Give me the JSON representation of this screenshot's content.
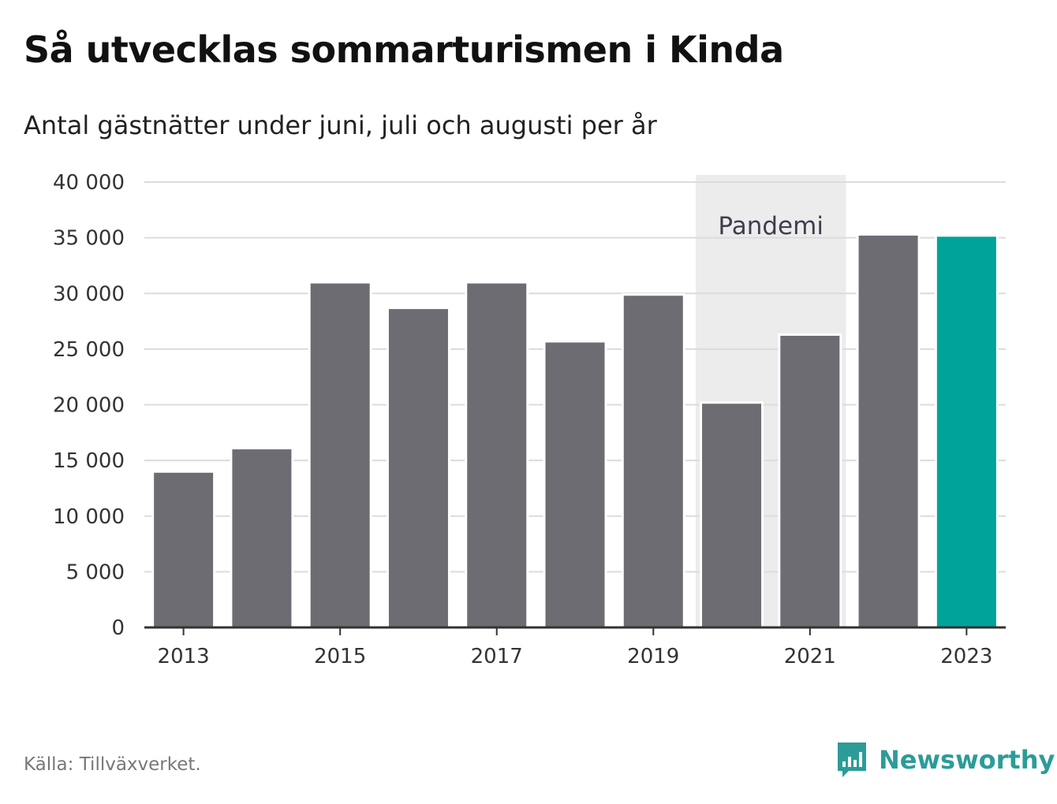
{
  "title": "Så utvecklas sommarturismen i Kinda",
  "subtitle": "Antal gästnätter under juni, juli och augusti per år",
  "source": "Källa: Tillväxverket.",
  "brand": {
    "name": "Newsworthy",
    "icon": "newsworthy-logo-icon"
  },
  "colors": {
    "bar": "#6d6c73",
    "highlight": "#00a39a",
    "band": "#ececec",
    "grid": "#dcdcdc",
    "axis": "#333333",
    "brand": "#2c9c98"
  },
  "chart_data": {
    "type": "bar",
    "title": "Så utvecklas sommarturismen i Kinda",
    "subtitle": "Antal gästnätter under juni, juli och augusti per år",
    "xlabel": "",
    "ylabel": "",
    "categories": [
      "2013",
      "2014",
      "2015",
      "2016",
      "2017",
      "2018",
      "2019",
      "2020",
      "2021",
      "2022",
      "2023"
    ],
    "values": [
      14000,
      16100,
      31000,
      28700,
      31000,
      25700,
      29900,
      20200,
      26300,
      35300,
      35200
    ],
    "highlight_index": 10,
    "ylim": [
      0,
      40000
    ],
    "yticks": [
      0,
      5000,
      10000,
      15000,
      20000,
      25000,
      30000,
      35000,
      40000
    ],
    "ytick_labels": [
      "0",
      "5 000",
      "10 000",
      "15 000",
      "20 000",
      "25 000",
      "30 000",
      "35 000",
      "40 000"
    ],
    "xtick_labels": [
      "2013",
      "2015",
      "2017",
      "2019",
      "2021",
      "2023"
    ],
    "grid": true,
    "legend": "none",
    "annotations": [
      {
        "type": "band",
        "label": "Pandemi",
        "from": "2020",
        "to": "2021"
      }
    ]
  }
}
